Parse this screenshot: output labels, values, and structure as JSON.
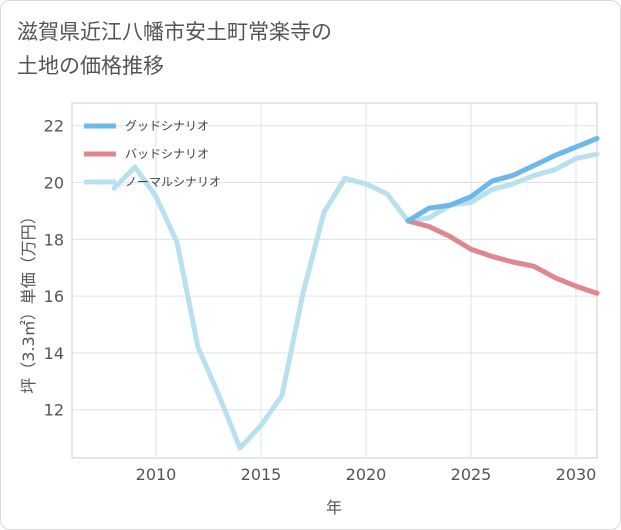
{
  "title_line1": "滋賀県近江八幡市安土町常楽寺の",
  "title_line2": "土地の価格推移",
  "chart_data": {
    "type": "line",
    "title": "滋賀県近江八幡市安土町常楽寺の土地の価格推移",
    "xlabel": "年",
    "ylabel": "坪（3.3㎡）単価（万円）",
    "xlim": [
      2006,
      2031
    ],
    "ylim": [
      10.3,
      22.8
    ],
    "xticks": [
      2010,
      2015,
      2020,
      2025,
      2030
    ],
    "yticks": [
      12,
      14,
      16,
      18,
      20,
      22
    ],
    "grid": true,
    "legend_position": "top-left",
    "series": [
      {
        "name": "グッドシナリオ",
        "color": "#6cb8ea",
        "x": [
          2022,
          2023,
          2024,
          2025,
          2026,
          2027,
          2028,
          2029,
          2030,
          2031
        ],
        "values": [
          18.65,
          19.1,
          19.2,
          19.5,
          20.05,
          20.25,
          20.6,
          20.95,
          21.25,
          21.55
        ]
      },
      {
        "name": "バッドシナリオ",
        "color": "#e0868e",
        "x": [
          2022,
          2023,
          2024,
          2025,
          2026,
          2027,
          2028,
          2029,
          2030,
          2031
        ],
        "values": [
          18.65,
          18.45,
          18.1,
          17.65,
          17.4,
          17.2,
          17.05,
          16.65,
          16.35,
          16.1
        ]
      },
      {
        "name": "ノーマルシナリオ",
        "color": "#b8e0ef",
        "x": [
          2008,
          2009,
          2010,
          2011,
          2012,
          2013,
          2014,
          2015,
          2016,
          2017,
          2018,
          2019,
          2020,
          2021,
          2022,
          2023,
          2024,
          2025,
          2026,
          2027,
          2028,
          2029,
          2030,
          2031
        ],
        "values": [
          19.8,
          20.55,
          19.5,
          17.9,
          14.2,
          12.5,
          10.65,
          11.45,
          12.5,
          16.1,
          18.95,
          20.15,
          19.95,
          19.6,
          18.65,
          18.75,
          19.2,
          19.3,
          19.75,
          19.95,
          20.25,
          20.45,
          20.85,
          21.0
        ]
      }
    ]
  }
}
